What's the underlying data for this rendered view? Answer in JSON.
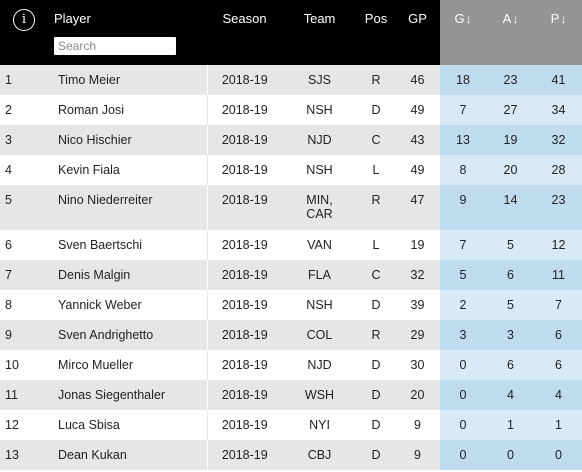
{
  "header": {
    "info_icon": "i",
    "player": "Player",
    "search_placeholder": "Search",
    "season": "Season",
    "team": "Team",
    "pos": "Pos",
    "gp": "GP",
    "g": "G",
    "a": "A",
    "p": "P",
    "sort_arrow": "↓"
  },
  "colors": {
    "header_bg": "#000000",
    "sorted_header_bg": "#959595",
    "stat_bg": "#bfdbf0",
    "stat_bg_alt": "#d8e9f7",
    "row_alt": "#e6e6e6"
  },
  "rows": [
    {
      "rank": "1",
      "player": "Timo Meier",
      "season": "2018-19",
      "team": "SJS",
      "pos": "R",
      "gp": "46",
      "g": "18",
      "a": "23",
      "p": "41"
    },
    {
      "rank": "2",
      "player": "Roman Josi",
      "season": "2018-19",
      "team": "NSH",
      "pos": "D",
      "gp": "49",
      "g": "7",
      "a": "27",
      "p": "34"
    },
    {
      "rank": "3",
      "player": "Nico Hischier",
      "season": "2018-19",
      "team": "NJD",
      "pos": "C",
      "gp": "43",
      "g": "13",
      "a": "19",
      "p": "32"
    },
    {
      "rank": "4",
      "player": "Kevin Fiala",
      "season": "2018-19",
      "team": "NSH",
      "pos": "L",
      "gp": "49",
      "g": "8",
      "a": "20",
      "p": "28"
    },
    {
      "rank": "5",
      "player": "Nino Niederreiter",
      "season": "2018-19",
      "team": "MIN,\nCAR",
      "pos": "R",
      "gp": "47",
      "g": "9",
      "a": "14",
      "p": "23"
    },
    {
      "rank": "6",
      "player": "Sven Baertschi",
      "season": "2018-19",
      "team": "VAN",
      "pos": "L",
      "gp": "19",
      "g": "7",
      "a": "5",
      "p": "12"
    },
    {
      "rank": "7",
      "player": "Denis Malgin",
      "season": "2018-19",
      "team": "FLA",
      "pos": "C",
      "gp": "32",
      "g": "5",
      "a": "6",
      "p": "11"
    },
    {
      "rank": "8",
      "player": "Yannick Weber",
      "season": "2018-19",
      "team": "NSH",
      "pos": "D",
      "gp": "39",
      "g": "2",
      "a": "5",
      "p": "7"
    },
    {
      "rank": "9",
      "player": "Sven Andrighetto",
      "season": "2018-19",
      "team": "COL",
      "pos": "R",
      "gp": "29",
      "g": "3",
      "a": "3",
      "p": "6"
    },
    {
      "rank": "10",
      "player": "Mirco Mueller",
      "season": "2018-19",
      "team": "NJD",
      "pos": "D",
      "gp": "30",
      "g": "0",
      "a": "6",
      "p": "6"
    },
    {
      "rank": "11",
      "player": "Jonas Siegenthaler",
      "season": "2018-19",
      "team": "WSH",
      "pos": "D",
      "gp": "20",
      "g": "0",
      "a": "4",
      "p": "4"
    },
    {
      "rank": "12",
      "player": "Luca Sbisa",
      "season": "2018-19",
      "team": "NYI",
      "pos": "D",
      "gp": "9",
      "g": "0",
      "a": "1",
      "p": "1"
    },
    {
      "rank": "13",
      "player": "Dean Kukan",
      "season": "2018-19",
      "team": "CBJ",
      "pos": "D",
      "gp": "9",
      "g": "0",
      "a": "0",
      "p": "0"
    }
  ]
}
